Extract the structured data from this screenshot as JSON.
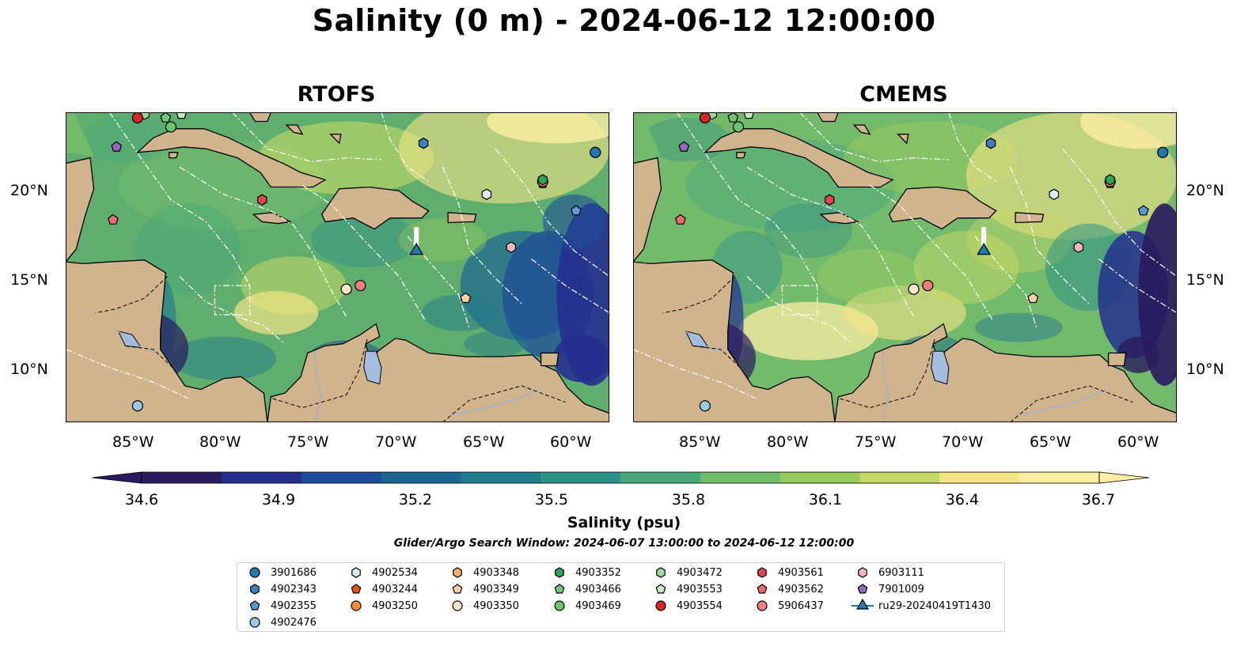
{
  "title": "Salinity (0 m) - 2024-06-12 12:00:00",
  "panels": [
    {
      "title": "RTOFS"
    },
    {
      "title": "CMEMS"
    }
  ],
  "axes": {
    "x_ticks": [
      "85°W",
      "80°W",
      "75°W",
      "70°W",
      "65°W",
      "60°W"
    ],
    "y_ticks": [
      "20°N",
      "15°N",
      "10°N"
    ],
    "lon_range": [
      -89,
      -58
    ],
    "lat_range": [
      7,
      24
    ]
  },
  "colorbar": {
    "label": "Salinity (psu)",
    "ticks": [
      "34.6",
      "34.9",
      "35.2",
      "35.5",
      "35.8",
      "36.1",
      "36.4",
      "36.7"
    ],
    "range": [
      34.6,
      36.7
    ],
    "colormap": [
      "#2a1a5e",
      "#272f8e",
      "#1f4c98",
      "#1d6592",
      "#237b8c",
      "#2f9187",
      "#4aa77c",
      "#6fba6b",
      "#97c95f",
      "#c5d865",
      "#f2e487",
      "#fbeea1"
    ]
  },
  "search_window": "Glider/Argo Search Window: 2024-06-07 13:00:00 to 2024-06-12 12:00:00",
  "colors": {
    "land": "#d2b48c",
    "lake": "#a4bde0",
    "deep_ocean": "#2a1a5e"
  },
  "chart_data": {
    "type": "heatmap",
    "variable": "Salinity (psu)",
    "depth": "0 m",
    "time": "2024-06-12 12:00:00",
    "legend_placement": "bottom-center",
    "series": [
      {
        "name": "3901686",
        "marker": "circle",
        "color": "#1f77b4",
        "points": [
          [
            -58.8,
            21.8
          ]
        ]
      },
      {
        "name": "4902343",
        "marker": "hexagon",
        "color": "#3f7fbf",
        "points": [
          [
            -68.6,
            22.3
          ]
        ]
      },
      {
        "name": "4902355",
        "marker": "pentagon",
        "color": "#5a9bd5",
        "points": [
          [
            -59.9,
            18.6
          ]
        ]
      },
      {
        "name": "4902476",
        "marker": "circle",
        "color": "#9ecae1",
        "points": [
          [
            -84.9,
            7.9
          ]
        ]
      },
      {
        "name": "4902534",
        "marker": "hexagon",
        "color": "#deebf7",
        "points": [
          [
            -65.0,
            19.5
          ]
        ]
      },
      {
        "name": "4903244",
        "marker": "pentagon",
        "color": "#e6550d",
        "points": [
          [
            -61.8,
            20.1
          ]
        ]
      },
      {
        "name": "4903250",
        "marker": "circle",
        "color": "#fd8d3c",
        "points": [
          [
            -61.8,
            20.2
          ]
        ]
      },
      {
        "name": "4903348",
        "marker": "hexagon",
        "color": "#fdae6b",
        "points": [
          [
            -72.3,
            24.3
          ]
        ]
      },
      {
        "name": "4903349",
        "marker": "pentagon",
        "color": "#fdd0a2",
        "points": [
          [
            -66.2,
            13.8
          ]
        ]
      },
      {
        "name": "4903350",
        "marker": "circle",
        "color": "#fee6ce",
        "points": [
          [
            -73.0,
            14.3
          ]
        ]
      },
      {
        "name": "4903352",
        "marker": "hexagon",
        "color": "#31a354",
        "points": [
          [
            -61.8,
            20.3
          ]
        ]
      },
      {
        "name": "4903466",
        "marker": "pentagon",
        "color": "#74c476",
        "points": [
          [
            -83.3,
            23.7
          ]
        ]
      },
      {
        "name": "4903469",
        "marker": "circle",
        "color": "#6cc46f",
        "points": [
          [
            -83.0,
            23.2
          ]
        ]
      },
      {
        "name": "4903472",
        "marker": "hexagon",
        "color": "#a1d99b",
        "points": [
          [
            -84.5,
            23.9
          ]
        ]
      },
      {
        "name": "4903553",
        "marker": "pentagon",
        "color": "#c7e9c0",
        "points": [
          [
            -82.4,
            23.9
          ]
        ]
      },
      {
        "name": "4903554",
        "marker": "circle",
        "color": "#d62728",
        "points": [
          [
            -84.9,
            23.7
          ]
        ]
      },
      {
        "name": "4903561",
        "marker": "hexagon",
        "color": "#e0444f",
        "points": [
          [
            -77.8,
            19.2
          ]
        ]
      },
      {
        "name": "4903562",
        "marker": "pentagon",
        "color": "#ef6a6a",
        "points": [
          [
            -86.3,
            18.1
          ]
        ]
      },
      {
        "name": "5906437",
        "marker": "circle",
        "color": "#f08080",
        "points": [
          [
            -72.2,
            14.5
          ]
        ]
      },
      {
        "name": "6903111",
        "marker": "hexagon",
        "color": "#f4b6b6",
        "points": [
          [
            -63.6,
            16.6
          ]
        ]
      },
      {
        "name": "7901009",
        "marker": "pentagon",
        "color": "#9467bd",
        "points": [
          [
            -86.1,
            22.1
          ]
        ]
      },
      {
        "name": "ru29-20240419T1430",
        "marker": "triangle",
        "color": "#1f77b4",
        "points": [
          [
            -69.0,
            16.4
          ]
        ]
      }
    ]
  }
}
